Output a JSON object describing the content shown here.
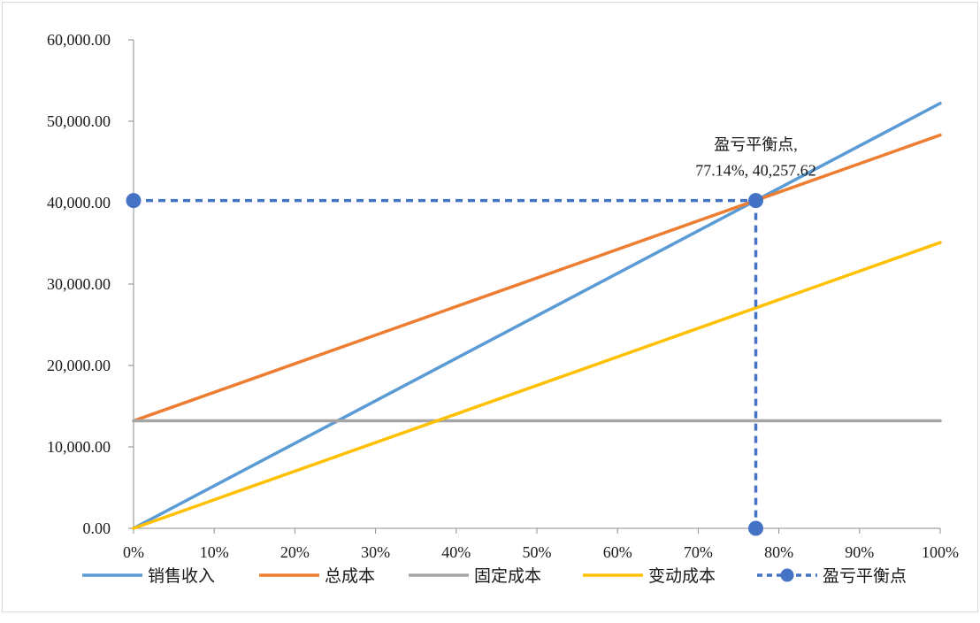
{
  "chart_data": {
    "type": "line",
    "x": [
      0,
      10,
      20,
      30,
      40,
      50,
      60,
      70,
      80,
      90,
      100
    ],
    "x_tick_labels": [
      "0%",
      "10%",
      "20%",
      "30%",
      "40%",
      "50%",
      "60%",
      "70%",
      "80%",
      "90%",
      "100%"
    ],
    "y_tick_labels": [
      "0.00",
      "10,000.00",
      "20,000.00",
      "30,000.00",
      "40,000.00",
      "50,000.00",
      "60,000.00"
    ],
    "xlim": [
      0,
      100
    ],
    "ylim": [
      0,
      60000
    ],
    "grid": false,
    "legend_position": "bottom",
    "series": [
      {
        "name": "销售收入",
        "color": "#5b9bd5",
        "x": [
          0,
          100
        ],
        "y": [
          0,
          52200
        ]
      },
      {
        "name": "总成本",
        "color": "#ed7d31",
        "x": [
          0,
          100
        ],
        "y": [
          13200,
          48300
        ]
      },
      {
        "name": "固定成本",
        "color": "#a5a5a5",
        "x": [
          0,
          100
        ],
        "y": [
          13200,
          13200
        ]
      },
      {
        "name": "变动成本",
        "color": "#ffc000",
        "x": [
          0,
          100
        ],
        "y": [
          0,
          35100
        ]
      }
    ],
    "break_even": {
      "name": "盈亏平衡点",
      "color": "#4472c4",
      "x": 77.14,
      "y": 40257.62,
      "label_line1": "盈亏平衡点,",
      "label_line2": "77.14%, 40,257.62"
    }
  }
}
